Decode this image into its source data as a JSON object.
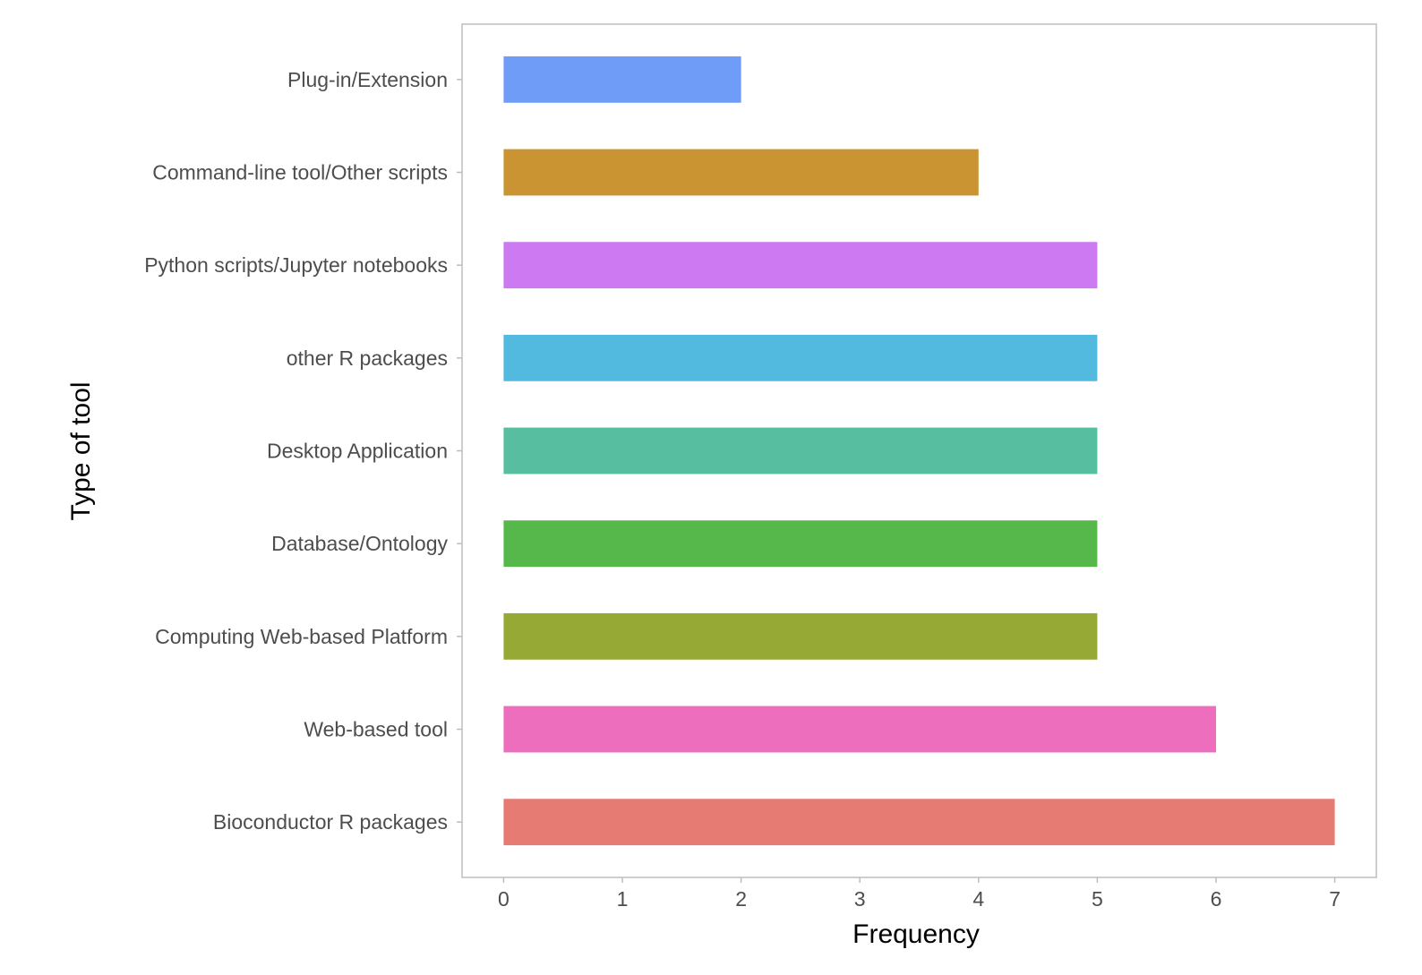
{
  "chart_data": {
    "type": "bar",
    "orientation": "horizontal",
    "categories": [
      "Bioconductor R packages",
      "Web-based tool",
      "Computing Web-based Platform",
      "Database/Ontology",
      "Desktop Application",
      "other R packages",
      "Python scripts/Jupyter notebooks",
      "Command-line tool/Other scripts",
      "Plug-in/Extension"
    ],
    "values": [
      7,
      6,
      5,
      5,
      5,
      5,
      5,
      4,
      2
    ],
    "colors": [
      "#e57b72",
      "#ed6ebd",
      "#97a935",
      "#56b84b",
      "#57be9f",
      "#52b9df",
      "#cc79f2",
      "#c99431",
      "#6f9cf7"
    ],
    "xlabel": "Frequency",
    "ylabel": "Type of tool",
    "xticks": [
      0,
      1,
      2,
      3,
      4,
      5,
      6,
      7
    ],
    "xlim": [
      -0.35,
      7.35
    ],
    "grid": false,
    "legend": "none"
  }
}
